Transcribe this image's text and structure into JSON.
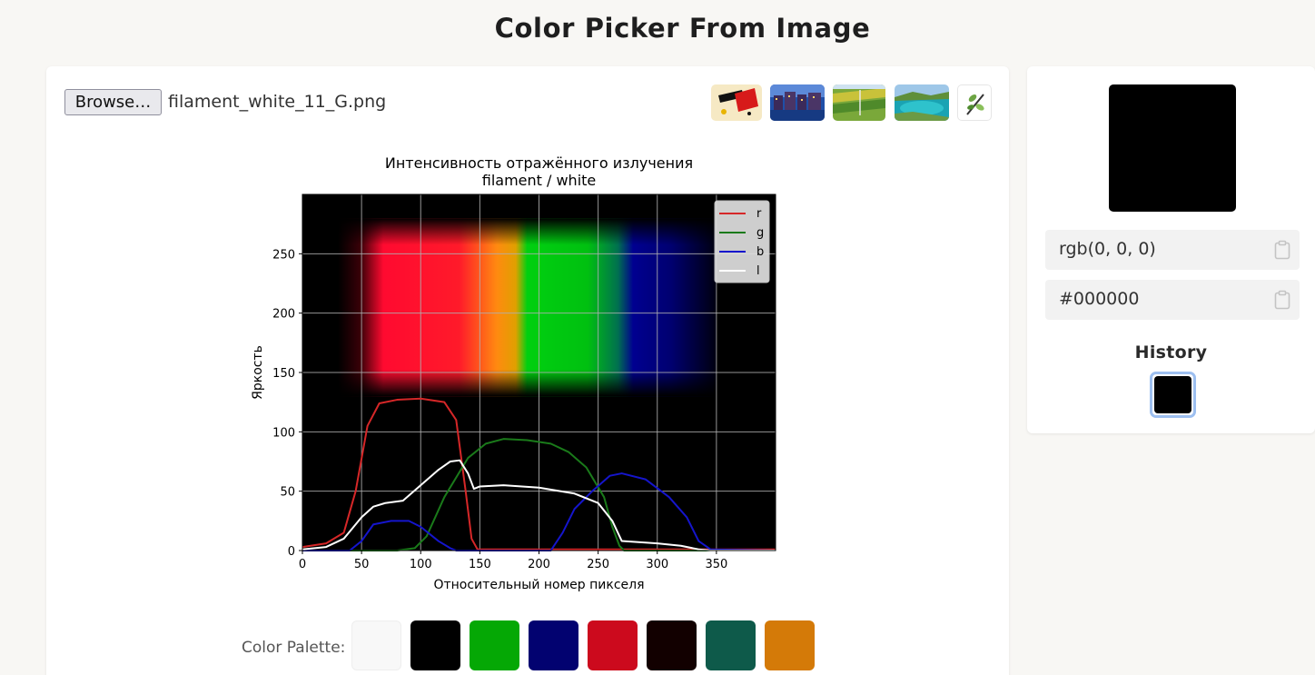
{
  "page": {
    "title": "Color Picker From Image"
  },
  "uploader": {
    "browse_label": "Browse…",
    "file_name": "filament_white_11_G.png"
  },
  "samples": [
    {
      "name": "sample-abstract-art",
      "icon": "abstract-art-thumb"
    },
    {
      "name": "sample-city-night",
      "icon": "city-night-thumb"
    },
    {
      "name": "sample-fields",
      "icon": "fields-thumb"
    },
    {
      "name": "sample-coast",
      "icon": "coast-thumb"
    },
    {
      "name": "sample-plant-logo",
      "icon": "plant-logo-thumb"
    }
  ],
  "chart_data": {
    "type": "line",
    "title": "Интенсивность отражённого излучения",
    "subtitle": "filament / white",
    "xlabel": "Относительный номер пикселя",
    "ylabel": "Яркость",
    "xlim": [
      0,
      400
    ],
    "ylim": [
      0,
      300
    ],
    "xticks": [
      0,
      50,
      100,
      150,
      200,
      250,
      300,
      350
    ],
    "yticks": [
      0,
      50,
      100,
      150,
      200,
      250
    ],
    "grid": true,
    "legend_position": "top-right",
    "series": [
      {
        "name": "r",
        "color": "#d62728",
        "x": [
          0,
          20,
          35,
          45,
          55,
          65,
          80,
          100,
          120,
          130,
          138,
          143,
          148,
          400
        ],
        "y": [
          3,
          6,
          15,
          50,
          105,
          124,
          127,
          128,
          125,
          110,
          50,
          10,
          1,
          1
        ]
      },
      {
        "name": "g",
        "color": "#1a7a1a",
        "x": [
          0,
          80,
          95,
          105,
          120,
          140,
          155,
          170,
          190,
          210,
          225,
          240,
          255,
          262,
          268,
          272,
          400
        ],
        "y": [
          0,
          0,
          2,
          12,
          45,
          78,
          90,
          94,
          93,
          90,
          83,
          70,
          45,
          20,
          4,
          0,
          0
        ]
      },
      {
        "name": "b",
        "color": "#1515cc",
        "x": [
          0,
          40,
          50,
          60,
          75,
          90,
          100,
          115,
          125,
          130,
          210,
          220,
          230,
          245,
          260,
          270,
          290,
          310,
          325,
          335,
          345,
          400
        ],
        "y": [
          0,
          0,
          8,
          22,
          25,
          25,
          20,
          8,
          2,
          0,
          0,
          15,
          35,
          50,
          63,
          65,
          60,
          45,
          28,
          8,
          1,
          0
        ]
      },
      {
        "name": "l",
        "color": "#ffffff",
        "x": [
          0,
          20,
          35,
          50,
          60,
          70,
          85,
          100,
          115,
          125,
          133,
          140,
          145,
          150,
          170,
          200,
          230,
          250,
          262,
          270,
          300,
          320,
          335,
          345,
          400
        ],
        "y": [
          1,
          3,
          10,
          28,
          37,
          40,
          42,
          55,
          68,
          75,
          76,
          65,
          52,
          54,
          55,
          53,
          48,
          40,
          25,
          8,
          6,
          4,
          1,
          0,
          0
        ]
      }
    ]
  },
  "palette": {
    "label": "Color Palette:",
    "colors": [
      "#f8f8f8",
      "#000000",
      "#05a805",
      "#020270",
      "#cc0a1d",
      "#120000",
      "#0e5a4a",
      "#d47a08"
    ]
  },
  "picker": {
    "current_color": "#000000",
    "rgb": "rgb(0, 0, 0)",
    "hex": "#000000",
    "history_title": "History",
    "history": [
      "#000000"
    ]
  }
}
